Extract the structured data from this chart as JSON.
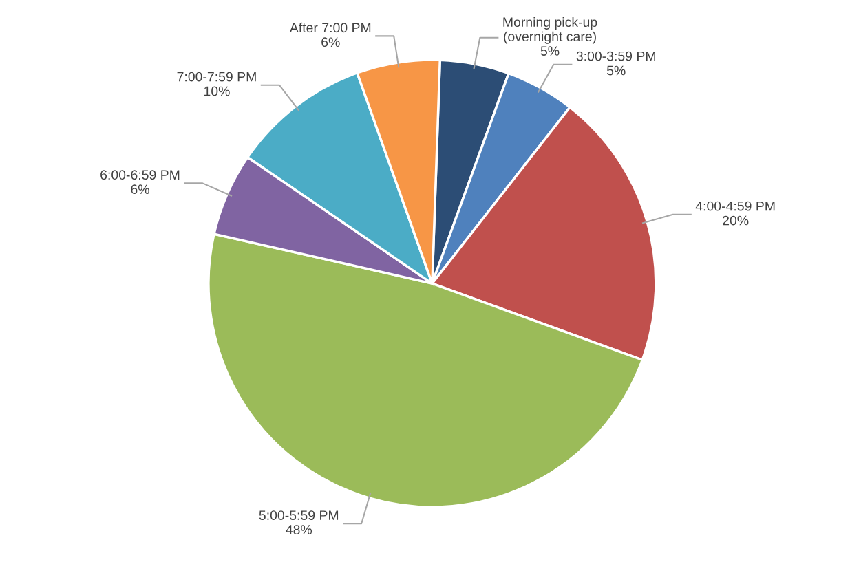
{
  "chart_data": {
    "type": "pie",
    "categories": [
      "Morning pick-up\n(overnight care)",
      "3:00-3:59 PM",
      "4:00-4:59 PM",
      "5:00-5:59 PM",
      "6:00-6:59 PM",
      "7:00-7:59 PM",
      "After 7:00 PM"
    ],
    "values": [
      5,
      5,
      20,
      48,
      6,
      10,
      6
    ],
    "value_labels": [
      "5%",
      "5%",
      "20%",
      "48%",
      "6%",
      "10%",
      "6%"
    ],
    "colors": [
      "#2c4d75",
      "#4f81bd",
      "#c0504d",
      "#9bbb59",
      "#8064a2",
      "#4bacc6",
      "#f79646"
    ],
    "legend": false
  }
}
